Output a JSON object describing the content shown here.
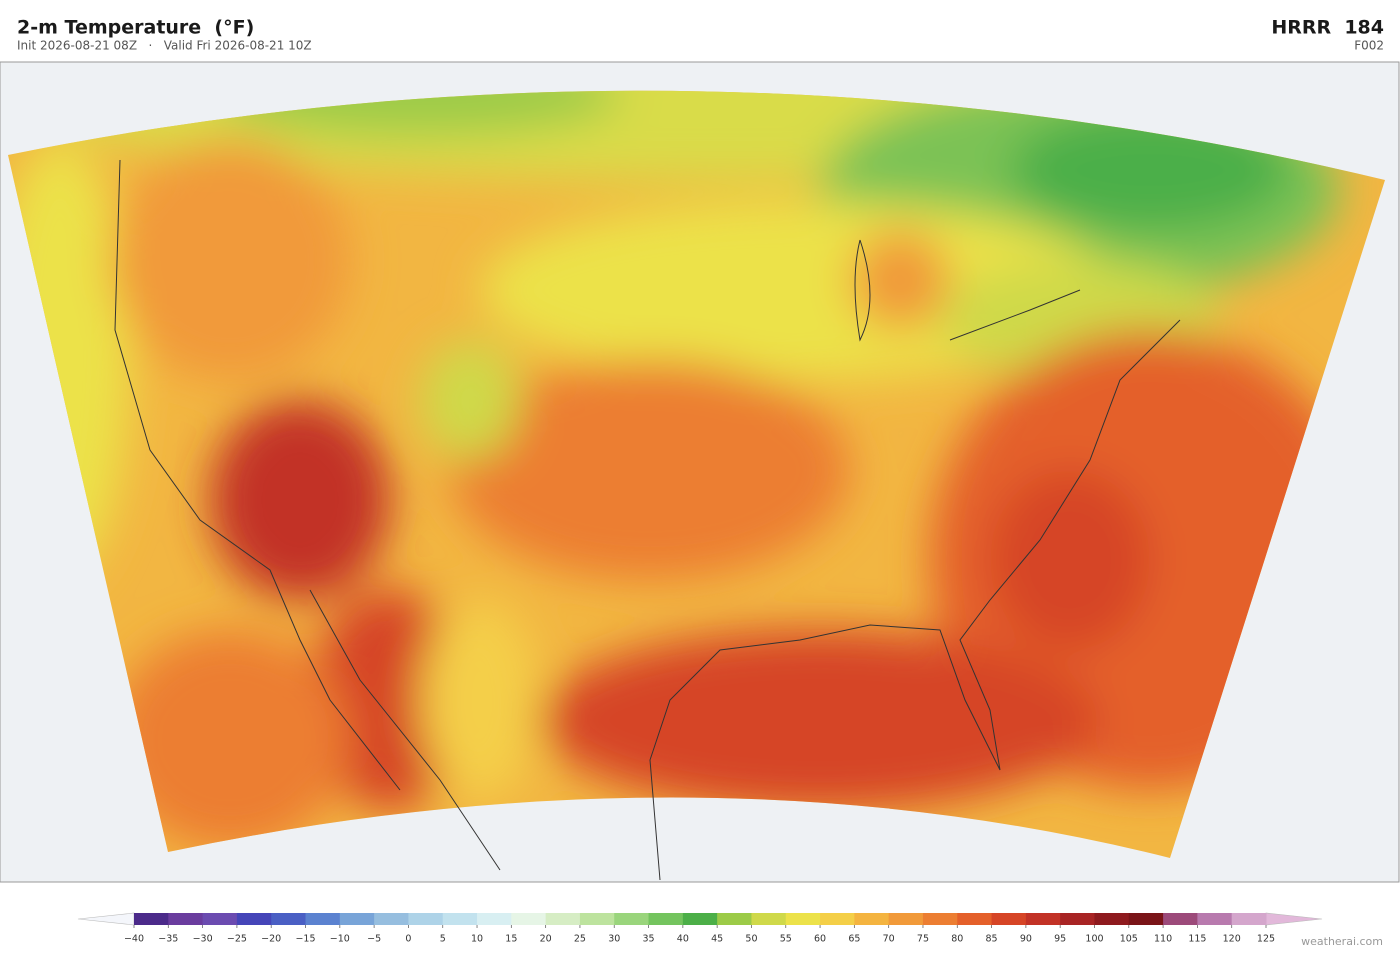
{
  "header": {
    "title": "2-m Temperature  (°F)",
    "subtitle": "Init 2026-08-21 08Z   ·   Valid Fri 2026-08-21 10Z",
    "model": "HRRR  184",
    "forecast_hour": "F002"
  },
  "colorbar": {
    "ticks": [
      {
        "value": -40,
        "label": "−40"
      },
      {
        "value": -35,
        "label": "−35"
      },
      {
        "value": -30,
        "label": "−30"
      },
      {
        "value": -25,
        "label": "−25"
      },
      {
        "value": -20,
        "label": "−20"
      },
      {
        "value": -15,
        "label": "−15"
      },
      {
        "value": -10,
        "label": "−10"
      },
      {
        "value": -5,
        "label": "−5"
      },
      0,
      5,
      10,
      15,
      20,
      25,
      30,
      35,
      40,
      45,
      50,
      55,
      60,
      65,
      70,
      75,
      80,
      85,
      90,
      95,
      100,
      105,
      110,
      115,
      120,
      125
    ],
    "colors": [
      "#4b2a8a",
      "#6a3c9e",
      "#6b4bb0",
      "#4545b8",
      "#4a5fc4",
      "#5b82d0",
      "#78a4d8",
      "#96bedf",
      "#aed3e8",
      "#c2e2ee",
      "#d8eff2",
      "#e6f5e6",
      "#d6edc4",
      "#bde39e",
      "#9ad57c",
      "#74c45e",
      "#4caf48",
      "#9ccb48",
      "#cfd94a",
      "#ece24a",
      "#f4cf48",
      "#f4b440",
      "#f19a3a",
      "#ec7e32",
      "#e4602a",
      "#d64526",
      "#c23226",
      "#a82424",
      "#8e1a1e",
      "#7a1418",
      "#9c4a7a",
      "#b87aae",
      "#d4a6cc"
    ],
    "under_color": "#f4f6fb",
    "over_color": "#e2b8da"
  },
  "footer": {
    "watermark": "weatherai.com"
  }
}
